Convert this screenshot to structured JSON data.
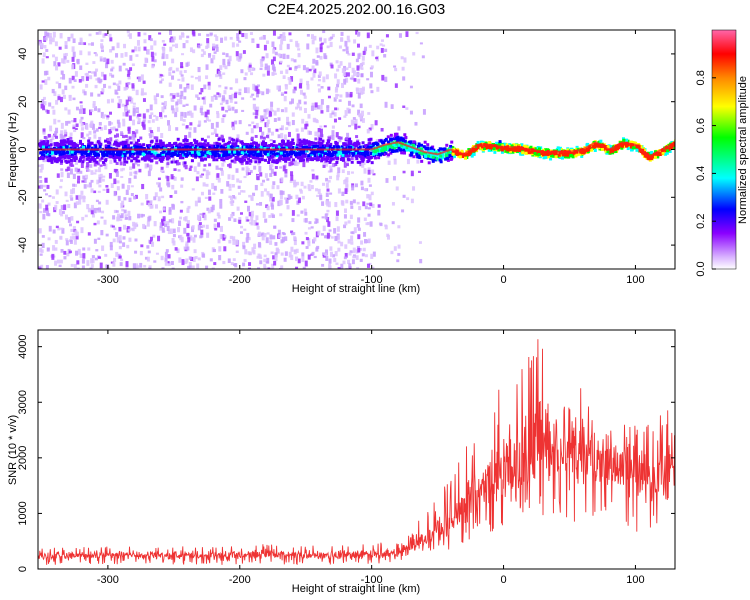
{
  "chart_data": [
    {
      "type": "heatmap",
      "title": "C2E4.2025.202.00.16.G03",
      "xlabel": "Height of straight line (km)",
      "ylabel": "Frequency (Hz)",
      "xlim": [
        -353,
        130
      ],
      "ylim": [
        -50,
        50
      ],
      "xticks": [
        -300,
        -200,
        -100,
        0,
        100
      ],
      "yticks": [
        -40,
        -20,
        0,
        20,
        40
      ],
      "colorbar": {
        "label": "Normalized spectral amplitude",
        "range": [
          0.0,
          1.0
        ],
        "ticks": [
          0.0,
          0.2,
          0.4,
          0.6,
          0.8
        ],
        "tick_labels": [
          "0.0",
          "0.2",
          "0.4",
          "0.6",
          "0.8"
        ],
        "colormap": [
          "#ffffff",
          "#d9b3ff",
          "#8a00ff",
          "#0000ff",
          "#00ffff",
          "#00ff00",
          "#ffff00",
          "#ff8800",
          "#ff0000",
          "#ff66aa"
        ]
      },
      "ridge": {
        "description_x": [
          -353,
          -100,
          -90,
          -80,
          -70,
          -60,
          -50,
          -40,
          -30,
          -20,
          -10,
          0,
          10,
          20,
          30,
          40,
          50,
          60,
          70,
          80,
          90,
          100,
          110,
          120,
          130
        ],
        "frequency": [
          0,
          0,
          2,
          3,
          1,
          -1,
          -2,
          0,
          -2,
          2,
          2,
          1,
          1,
          0,
          -1,
          -1,
          -1,
          0,
          3,
          0,
          3,
          2,
          -3,
          0,
          3
        ]
      },
      "grid": false,
      "legend": "colorbar-right"
    },
    {
      "type": "line",
      "xlabel": "Height of straight line (km)",
      "ylabel": "SNR (10 * v/v)",
      "xlim": [
        -353,
        130
      ],
      "ylim": [
        0,
        4300
      ],
      "xticks": [
        -300,
        -200,
        -100,
        0,
        100
      ],
      "yticks": [
        0,
        1000,
        2000,
        3000,
        4000
      ],
      "color": "#ee3333",
      "series": [
        {
          "x": [
            -353,
            -330,
            -300,
            -270,
            -240,
            -210,
            -180,
            -150,
            -120,
            -100,
            -90,
            -80,
            -70,
            -60,
            -50,
            -40,
            -30,
            -20,
            -10,
            0,
            10,
            20,
            30,
            40,
            50,
            60,
            70,
            80,
            90,
            100,
            110,
            120,
            130
          ],
          "y": [
            220,
            230,
            240,
            250,
            245,
            240,
            260,
            250,
            260,
            270,
            280,
            320,
            420,
            550,
            700,
            850,
            1100,
            1350,
            1550,
            1650,
            1850,
            2050,
            2300,
            2200,
            2200,
            2100,
            2000,
            1950,
            1900,
            1800,
            1750,
            1800,
            1850
          ],
          "upper": [
            380,
            390,
            420,
            430,
            420,
            410,
            450,
            430,
            450,
            470,
            520,
            700,
            850,
            1000,
            1300,
            1700,
            2200,
            2700,
            3200,
            3400,
            3700,
            4000,
            4300,
            4300,
            3800,
            3500,
            3300,
            3100,
            2900,
            2800,
            2700,
            2900,
            3000
          ],
          "lower": [
            60,
            70,
            80,
            80,
            80,
            70,
            80,
            80,
            80,
            90,
            100,
            120,
            180,
            250,
            300,
            350,
            450,
            550,
            650,
            700,
            800,
            900,
            950,
            900,
            850,
            850,
            800,
            750,
            700,
            650,
            600,
            650,
            700
          ]
        }
      ],
      "grid": false
    }
  ]
}
